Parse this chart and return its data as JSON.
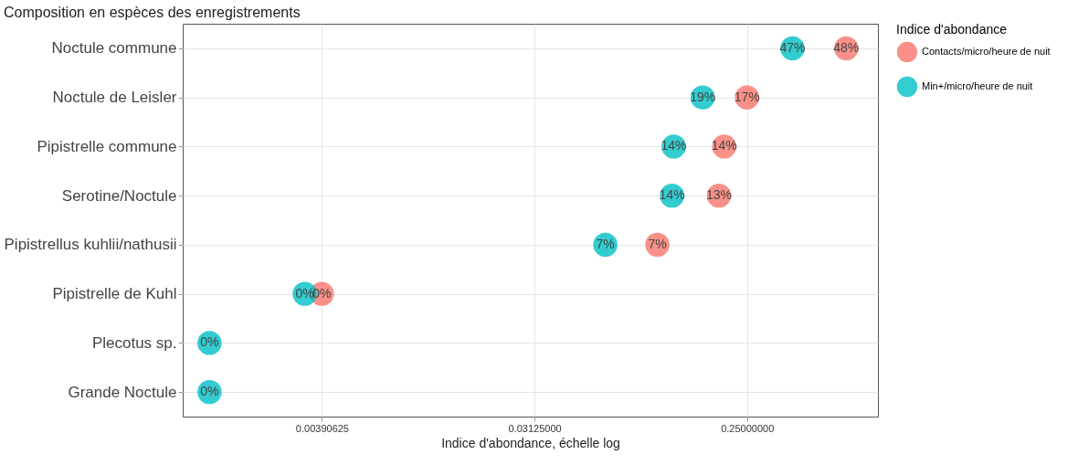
{
  "chart_data": {
    "type": "scatter",
    "title": "Composition en espèces des enregistrements",
    "xlabel": "Indice d'abondance, échelle log",
    "legend_title": "Indice d'abondance",
    "orientation": "horizontal",
    "log": "x",
    "grid": true,
    "legend": "right",
    "marker": "circle",
    "categories": [
      "Noctule commune",
      "Noctule de Leisler",
      "Pipistrelle commune",
      "Serotine/Noctule",
      "Pipistrellus kuhlii/nathusii",
      "Pipistrelle de Kuhl",
      "Plecotus sp.",
      "Grande Noctule"
    ],
    "xlim": [
      0.001,
      0.9
    ],
    "xticks": [
      {
        "value": 0.00390625,
        "label": "0.00390625"
      },
      {
        "value": 0.03125,
        "label": "0.03125000"
      },
      {
        "value": 0.25,
        "label": "0.25000000"
      }
    ],
    "series": [
      {
        "name": "Contacts/micro/heure de nuit",
        "color": "#f8766d",
        "values": [
          0.66,
          0.25,
          0.2,
          0.19,
          0.104,
          0.0039,
          null,
          null
        ]
      },
      {
        "name": "Min+/micro/heure de nuit",
        "color": "#00bfc4",
        "values": [
          0.39,
          0.162,
          0.122,
          0.12,
          0.0625,
          0.0033,
          0.0013,
          0.0013
        ]
      }
    ],
    "annotations": [
      {
        "text": "48%",
        "x": 0.66,
        "y": "Noctule commune"
      },
      {
        "text": "17%",
        "x": 0.25,
        "y": "Noctule de Leisler"
      },
      {
        "text": "14%",
        "x": 0.2,
        "y": "Pipistrelle commune"
      },
      {
        "text": "13%",
        "x": 0.19,
        "y": "Serotine/Noctule"
      },
      {
        "text": "7%",
        "x": 0.104,
        "y": "Pipistrellus kuhlii/nathusii"
      },
      {
        "text": "0%",
        "x": 0.0039,
        "y": "Pipistrelle de Kuhl"
      },
      {
        "text": "47%",
        "x": 0.39,
        "y": "Noctule commune"
      },
      {
        "text": "19%",
        "x": 0.162,
        "y": "Noctule de Leisler"
      },
      {
        "text": "14%",
        "x": 0.122,
        "y": "Pipistrelle commune"
      },
      {
        "text": "14%",
        "x": 0.12,
        "y": "Serotine/Noctule"
      },
      {
        "text": "7%",
        "x": 0.0625,
        "y": "Pipistrellus kuhlii/nathusii"
      },
      {
        "text": "0%",
        "x": 0.0033,
        "y": "Pipistrelle de Kuhl"
      },
      {
        "text": "0%",
        "x": 0.0013,
        "y": "Plecotus sp."
      },
      {
        "text": "0%",
        "x": 0.0013,
        "y": "Grande Noctule"
      }
    ]
  }
}
